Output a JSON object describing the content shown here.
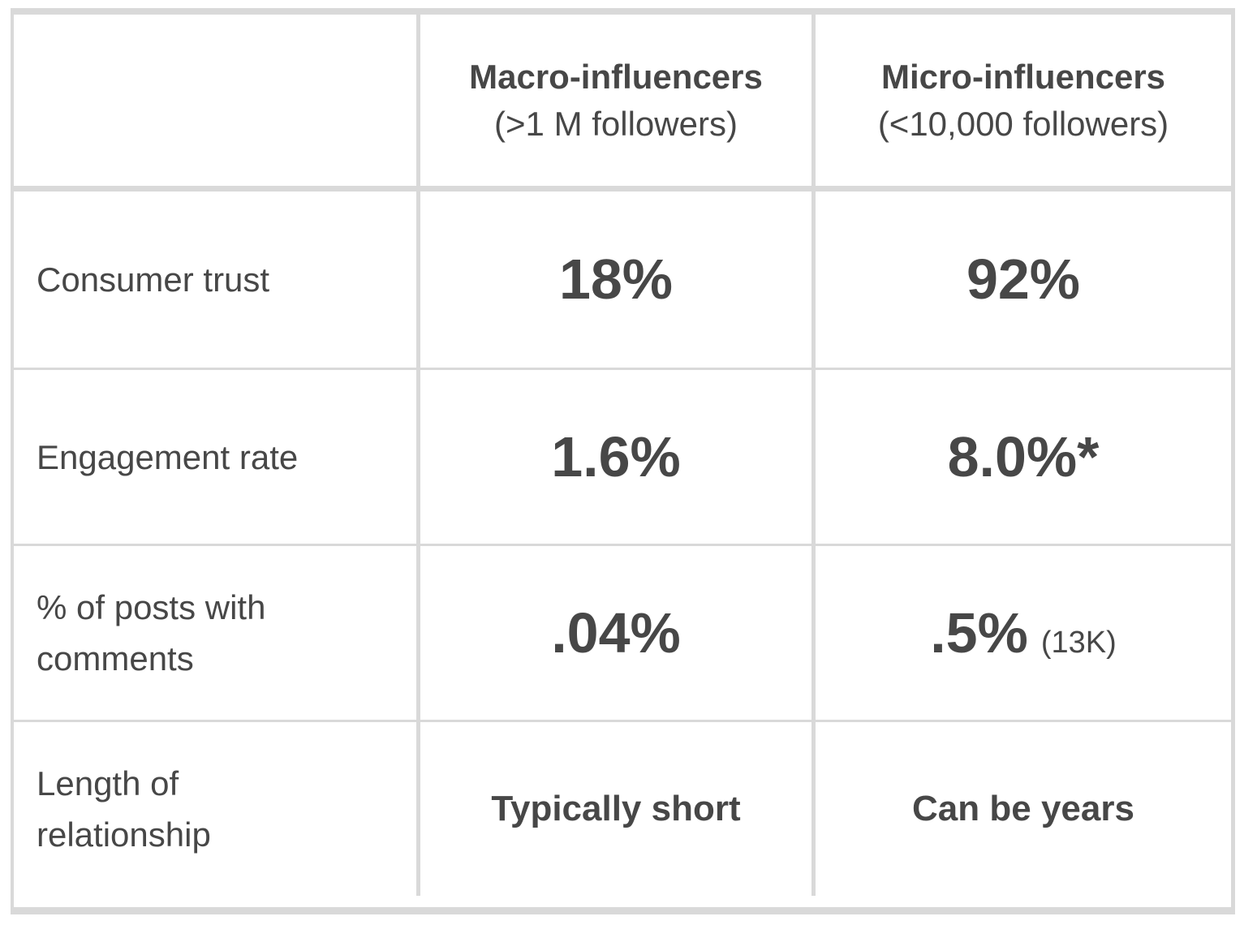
{
  "colors": {
    "text": "#474747",
    "border": "#d9d9d9",
    "background": "#ffffff"
  },
  "table": {
    "header": {
      "corner": "",
      "macro": {
        "title": "Macro-influencers",
        "subtitle": "(>1 M followers)"
      },
      "micro": {
        "title": "Micro-influencers",
        "subtitle": "(<10,000 followers)"
      }
    },
    "rows": [
      {
        "label": "Consumer trust",
        "macro": {
          "value": "18%"
        },
        "micro": {
          "value": "92%"
        }
      },
      {
        "label": "Engagement rate",
        "macro": {
          "value": "1.6%"
        },
        "micro": {
          "value": "8.0%*"
        }
      },
      {
        "label": "% of posts with comments",
        "macro": {
          "value": ".04%"
        },
        "micro": {
          "value": ".5%",
          "note": "(13K)"
        }
      },
      {
        "label": "Length of relationship",
        "macro": {
          "value": "Typically short"
        },
        "micro": {
          "value": "Can be years"
        }
      }
    ]
  },
  "chart_data": {
    "type": "table",
    "title": "Macro-influencers vs Micro-influencers comparison",
    "columns": [
      "",
      "Macro-influencers (>1 M followers)",
      "Micro-influencers (<10,000 followers)"
    ],
    "rows": [
      [
        "Consumer trust",
        "18%",
        "92%"
      ],
      [
        "Engagement rate",
        "1.6%",
        "8.0%*"
      ],
      [
        "% of posts with comments",
        ".04%",
        ".5% (13K)"
      ],
      [
        "Length of relationship",
        "Typically short",
        "Can be years"
      ]
    ]
  }
}
